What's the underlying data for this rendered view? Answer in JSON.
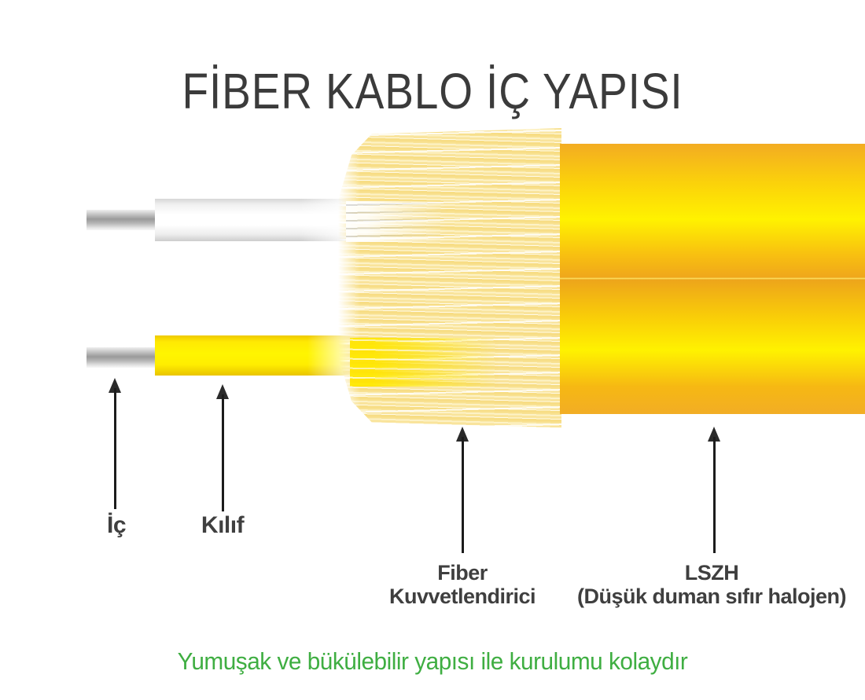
{
  "title": "FİBER KABLO İÇ YAPISI",
  "caption": "Yumuşak ve bükülebilir yapısı ile kurulumu kolaydır",
  "diagram": {
    "parts": {
      "inner": {
        "label": "İç"
      },
      "sheath": {
        "label": "Kılıf"
      },
      "strength": {
        "label_line1": "Fiber",
        "label_line2": "Kuvvetlendirici"
      },
      "jacket": {
        "label_line1": "LSZH",
        "label_line2": "(Düşük duman sıfır halojen)"
      }
    }
  },
  "colors": {
    "jacket_bright_yellow": "#fff200",
    "jacket_amber_edge": "#f3ac22",
    "buffer_tube_yellow": "#fff500",
    "fiber_light_yellow": "#f9e49c",
    "wire_gray": "#9a9a9a",
    "label_text": "#3f3f3f",
    "title_text": "#3b3b3b",
    "caption_green": "#3fae42",
    "arrow_black": "#1c1c1c"
  }
}
